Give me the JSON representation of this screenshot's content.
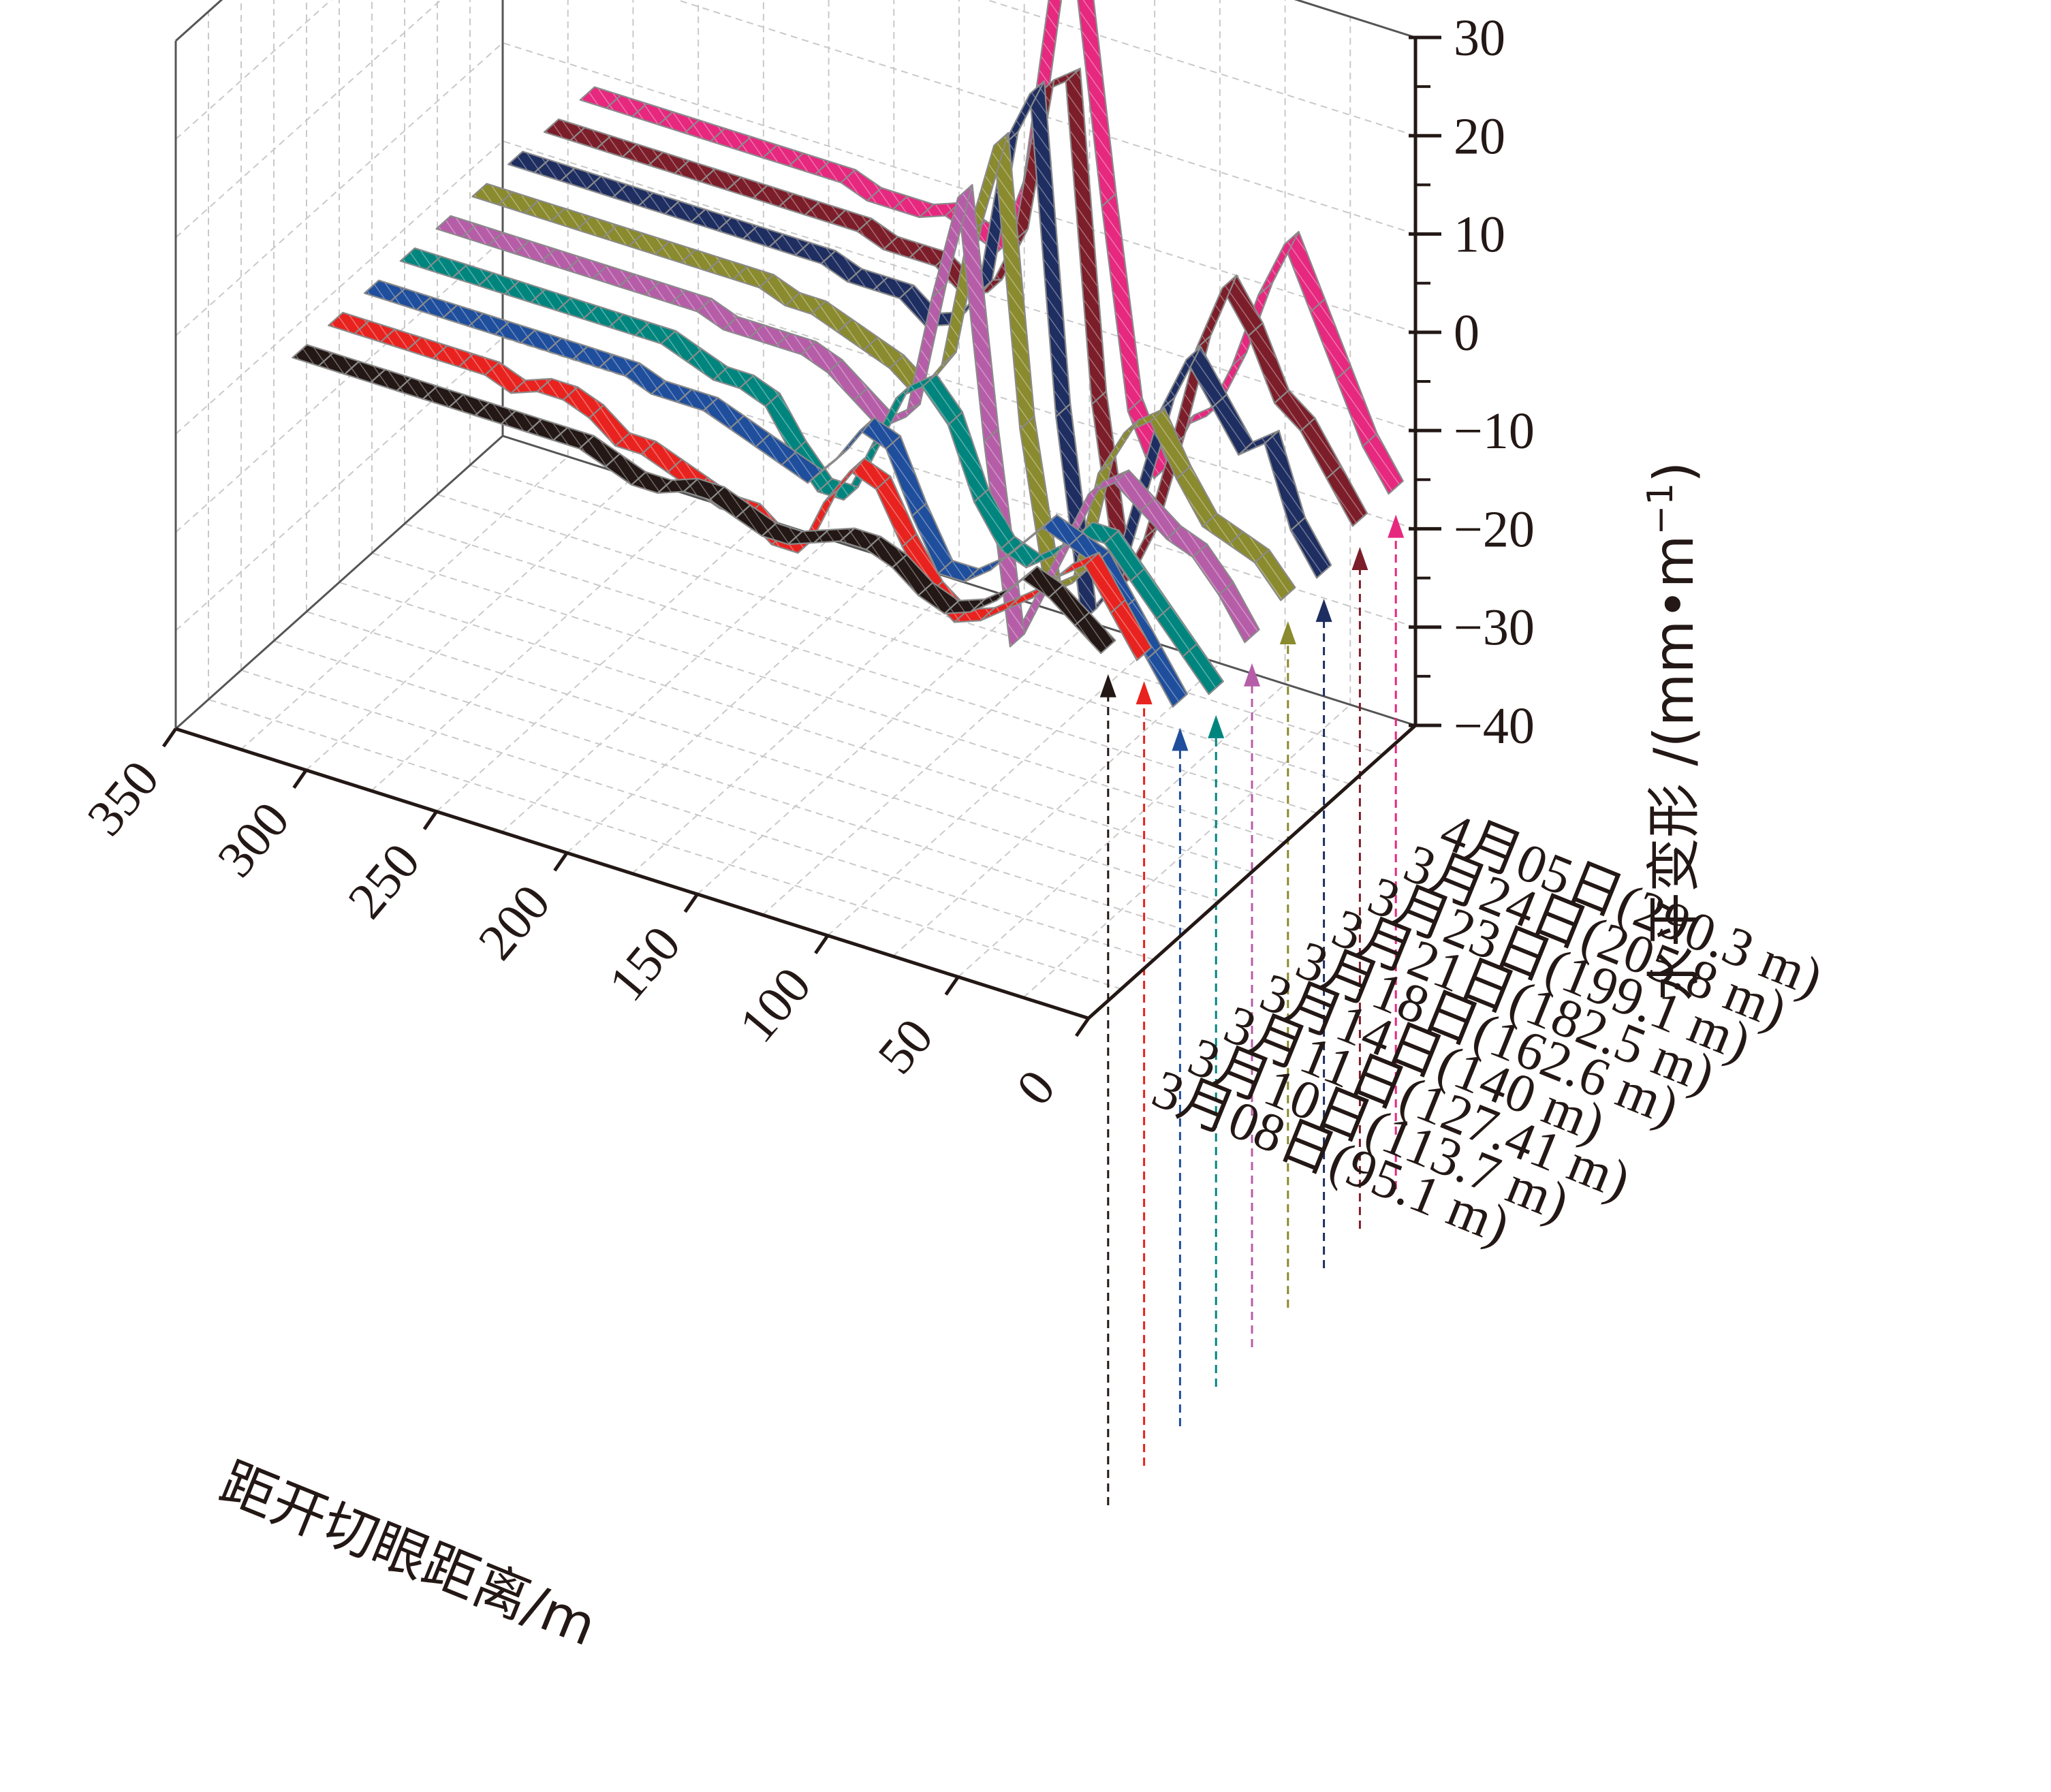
{
  "chart_data": {
    "type": "line",
    "projection": "3d-ribbon",
    "title": "",
    "xlabel": "距开切眼距离/m",
    "ylabel": "",
    "zlabel": "水平变形 /(mm•m",
    "zlabel_sup": "−1",
    "zlabel_close": ")",
    "xlim": [
      0,
      350
    ],
    "zlim": [
      -40,
      30
    ],
    "x_ticks": [
      "0",
      "50",
      "100",
      "150",
      "200",
      "250",
      "300",
      "350"
    ],
    "z_ticks": [
      "−40",
      "−30",
      "−20",
      "−10",
      "0",
      "10",
      "20",
      "30"
    ],
    "grid": true,
    "x": [
      0,
      10,
      20,
      30,
      40,
      50,
      60,
      70,
      80,
      90,
      100,
      110,
      120,
      130,
      140,
      150,
      160,
      170,
      180,
      190,
      200,
      210,
      220,
      230,
      240,
      250,
      260,
      270,
      280,
      290,
      300,
      310
    ],
    "series": [
      {
        "name": "3月08日(95.1 m)",
        "color": "#231815",
        "arrow_color": "#231815",
        "values": [
          -4,
          -2,
          0,
          1,
          -2,
          -4,
          -5,
          -4,
          -2,
          -1,
          -1,
          -2,
          -3,
          -3,
          -2,
          -1,
          -1,
          -2,
          -2,
          -1,
          0,
          0,
          0,
          0,
          0,
          0,
          0,
          0,
          0,
          0,
          0,
          0
        ]
      },
      {
        "name": "3月10日(113.7 m)",
        "color": "#e8231f",
        "arrow_color": "#e8231f",
        "values": [
          -8,
          -4,
          0,
          -2,
          -5,
          -7,
          -9,
          -10,
          -8,
          -4,
          1,
          2,
          -2,
          -8,
          -8,
          -6,
          -6,
          -5,
          -4,
          -3,
          -3,
          -1,
          0,
          0,
          -1,
          0,
          0,
          0,
          0,
          0,
          0,
          0
        ]
      },
      {
        "name": "3月11日(127.41 m)",
        "color": "#1f4e9c",
        "arrow_color": "#1f4e9c",
        "values": [
          -16,
          -12,
          -8,
          -4,
          -3,
          -2,
          -5,
          -8,
          -10,
          -10,
          -5,
          1,
          2,
          -2,
          -5,
          -4,
          -3,
          -2,
          -1,
          -1,
          -1,
          0,
          0,
          0,
          0,
          0,
          0,
          0,
          0,
          0,
          0,
          0
        ]
      },
      {
        "name": "3月14日(140 m)",
        "color": "#00857e",
        "arrow_color": "#00857e",
        "values": [
          -18,
          -15,
          -12,
          -9,
          -6,
          -6,
          -9,
          -11,
          -10,
          -6,
          1,
          4,
          2,
          -4,
          -10,
          -10,
          -7,
          -3,
          -2,
          -2,
          -1,
          0,
          0,
          0,
          0,
          0,
          0,
          0,
          0,
          0,
          0,
          0
        ]
      },
      {
        "name": "3月18日(162.6 m)",
        "color": "#b65da8",
        "arrow_color": "#b65da8",
        "values": [
          -16,
          -12,
          -9,
          -8,
          -6,
          -4,
          -6,
          -12,
          -18,
          -24,
          -4,
          20,
          9,
          -4,
          -6,
          -4,
          -2,
          -1,
          -1,
          -1,
          -1,
          0,
          0,
          0,
          0,
          0,
          0,
          0,
          0,
          0,
          0,
          0
        ]
      },
      {
        "name": "3月21日(182.5 m)",
        "color": "#8a8a2e",
        "arrow_color": "#8a8a2e",
        "values": [
          -15,
          -12,
          -11,
          -10,
          -6,
          -1,
          -3,
          -8,
          -20,
          -22,
          -6,
          22,
          12,
          -2,
          -6,
          -4,
          -3,
          -2,
          -1,
          -1,
          0,
          0,
          0,
          0,
          0,
          0,
          0,
          0,
          0,
          0,
          0,
          0
        ]
      },
      {
        "name": "3月23日(199.1 m)",
        "color": "#1f2e61",
        "arrow_color": "#1f2e61",
        "values": [
          -16,
          -12,
          -4,
          -6,
          -2,
          2,
          -4,
          -14,
          -24,
          -28,
          -8,
          24,
          18,
          2,
          -2,
          -3,
          -1,
          -1,
          -1,
          0,
          0,
          0,
          0,
          0,
          0,
          0,
          0,
          0,
          0,
          0,
          0,
          0
        ]
      },
      {
        "name": "3月24日(205.8 m)",
        "color": "#7c1e2a",
        "arrow_color": "#7c1e2a",
        "values": [
          -14,
          -10,
          -6,
          -4,
          2,
          6,
          -1,
          -12,
          -22,
          -28,
          -10,
          22,
          20,
          4,
          -2,
          -3,
          -1,
          -1,
          -1,
          0,
          0,
          0,
          0,
          0,
          0,
          0,
          0,
          0,
          0,
          0,
          0,
          0
        ]
      },
      {
        "name": "4月05日(290.3 m)",
        "color": "#e6287f",
        "arrow_color": "#e6287f",
        "values": [
          -14,
          -10,
          -4,
          2,
          8,
          2,
          -6,
          -12,
          -14,
          -20,
          -14,
          6,
          28,
          26,
          6,
          -2,
          -1,
          0,
          -1,
          -1,
          -1,
          0,
          0,
          0,
          0,
          0,
          0,
          0,
          0,
          0,
          0,
          0
        ]
      }
    ]
  }
}
